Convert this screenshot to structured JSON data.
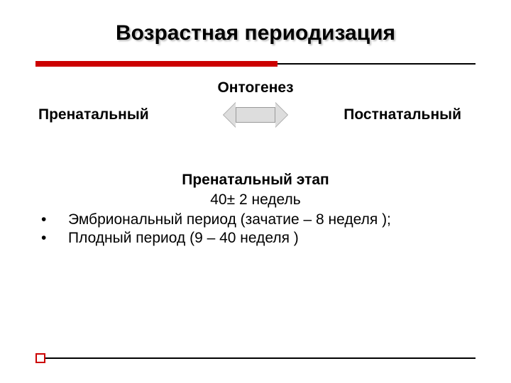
{
  "title": {
    "text": "Возрастная периодизация",
    "fontsize": 30
  },
  "title_line": {
    "red_width_pct": 55,
    "red_color": "#cc0000",
    "black_color": "#000000"
  },
  "ontogenesis": {
    "label": "Онтогенез",
    "left": "Пренатальный",
    "right": "Постнатальный",
    "fontsize": 21,
    "arrow_fill": "#dddddd",
    "arrow_border": "#999999"
  },
  "section": {
    "title": "Пренатальный этап",
    "subtitle": "40± 2 недель",
    "fontsize": 21,
    "bullets": [
      "Эмбриональный период (зачатие – 8 неделя );",
      "Плодный период (9 – 40 неделя )"
    ]
  },
  "footer": {
    "line_color": "#000000",
    "box_border": "#cc0000"
  }
}
